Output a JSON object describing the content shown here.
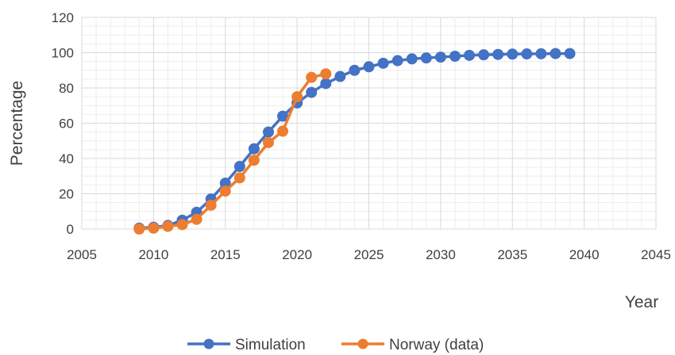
{
  "chart_data": {
    "type": "line",
    "title": "",
    "xlabel": "Year",
    "ylabel": "Percentage",
    "xlim": [
      2005,
      2045
    ],
    "ylim": [
      0,
      120
    ],
    "x_ticks": [
      "2005",
      "2010",
      "2015",
      "2020",
      "2025",
      "2030",
      "2035",
      "2040",
      "2045"
    ],
    "y_ticks": [
      "0",
      "20",
      "40",
      "60",
      "80",
      "100",
      "120"
    ],
    "grid": true,
    "legend_position": "bottom",
    "series": [
      {
        "name": "Simulation",
        "color": "#4472c4",
        "x": [
          2009,
          2010,
          2011,
          2012,
          2013,
          2014,
          2015,
          2016,
          2017,
          2018,
          2019,
          2020,
          2021,
          2022,
          2023,
          2024,
          2025,
          2026,
          2027,
          2028,
          2029,
          2030,
          2031,
          2032,
          2033,
          2034,
          2035,
          2036,
          2037,
          2038,
          2039
        ],
        "y": [
          0.5,
          1,
          2,
          5,
          9.5,
          17,
          26,
          35.5,
          45.5,
          55,
          64,
          71.5,
          77.5,
          82.5,
          86.5,
          90,
          92,
          94,
          95.5,
          96.5,
          97,
          97.5,
          98,
          98.5,
          98.8,
          99,
          99.2,
          99.3,
          99.4,
          99.5,
          99.5
        ]
      },
      {
        "name": "Norway (data)",
        "color": "#ed7d31",
        "x": [
          2009,
          2010,
          2011,
          2012,
          2013,
          2014,
          2015,
          2016,
          2017,
          2018,
          2019,
          2020,
          2021,
          2022
        ],
        "y": [
          0,
          0.5,
          1.5,
          2.5,
          5.5,
          13.5,
          21.5,
          29,
          39,
          49,
          55.5,
          75,
          86,
          88
        ]
      }
    ]
  }
}
